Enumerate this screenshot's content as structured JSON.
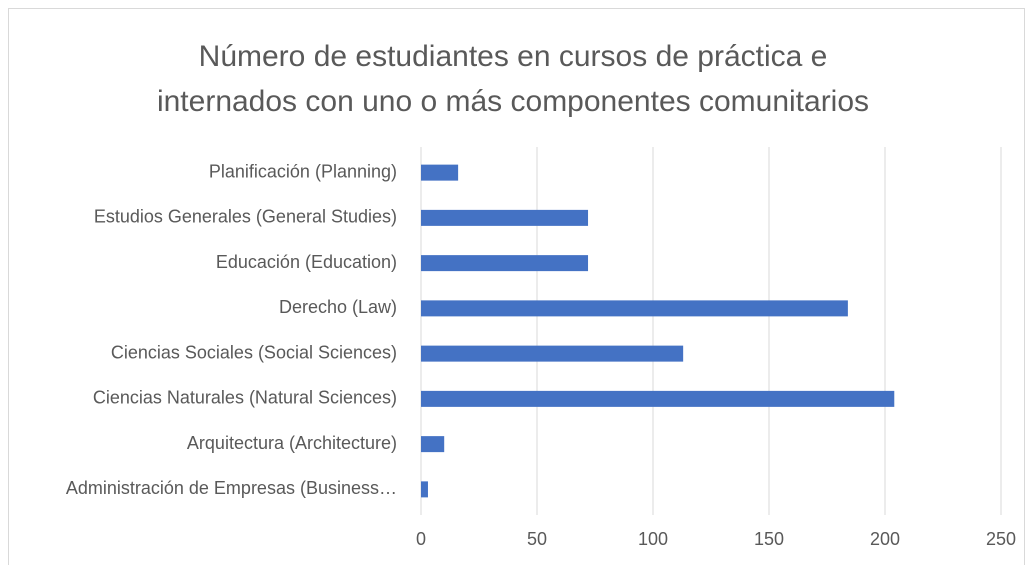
{
  "chart_data": {
    "type": "bar",
    "orientation": "horizontal",
    "title": [
      "Número de estudiantes en cursos de práctica e",
      "internados con uno o más componentes comunitarios"
    ],
    "categories": [
      "Administración de Empresas (Business…",
      "Arquitectura (Architecture)",
      "Ciencias Naturales (Natural Sciences)",
      "Ciencias Sociales (Social Sciences)",
      "Derecho (Law)",
      "Educación (Education)",
      "Estudios Generales (General Studies)",
      "Planificación (Planning)"
    ],
    "values": [
      3,
      10,
      204,
      113,
      184,
      72,
      72,
      16
    ],
    "color": "#4472c4",
    "xlim": [
      0,
      250
    ],
    "xticks": [
      0,
      50,
      100,
      150,
      200,
      250
    ],
    "grid": true
  }
}
